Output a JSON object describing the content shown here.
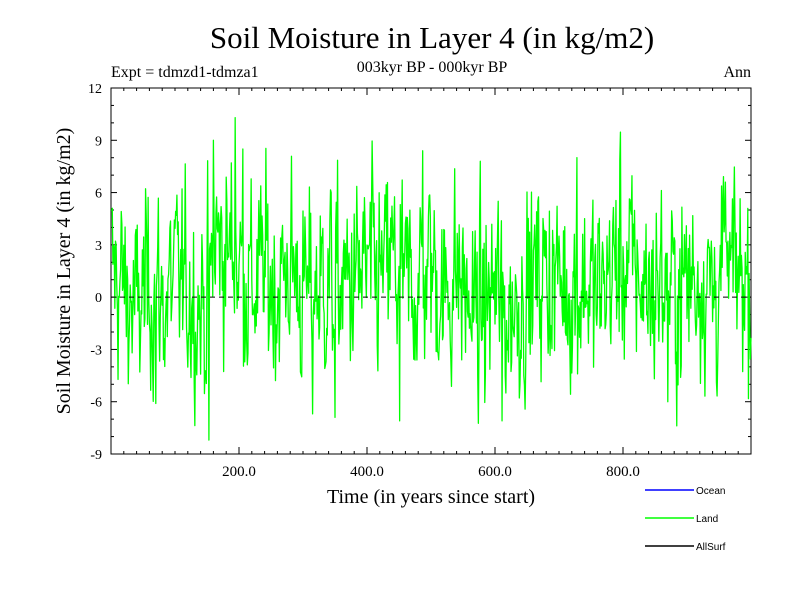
{
  "chart_data": {
    "type": "line",
    "title": "Soil Moisture in Layer 4 (in kg/m2)",
    "subtitle": "003kyr BP - 000kyr BP",
    "experiment": "Expt = tdmzd1-tdmza1",
    "season": "Ann",
    "xlabel": "Time (in years since start)",
    "ylabel": "Soil Moisture in Layer 4 (in kg/m2)",
    "xlim": [
      0,
      1000
    ],
    "ylim": [
      -9,
      12
    ],
    "x_ticks": [
      200,
      400,
      600,
      800
    ],
    "x_tick_labels": [
      "200.0",
      "400.0",
      "600.0",
      "800.0"
    ],
    "y_ticks": [
      -9,
      -6,
      -3,
      0,
      3,
      6,
      9,
      12
    ],
    "y_tick_labels": [
      "-9",
      "-6",
      "-3",
      "0",
      "3",
      "6",
      "9",
      "12"
    ],
    "zero_line": 0,
    "legend": [
      {
        "name": "Ocean",
        "color": "#0000ff"
      },
      {
        "name": "Land",
        "color": "#00ff00"
      },
      {
        "name": "AllSurf",
        "color": "#000000"
      }
    ],
    "series": [
      {
        "name": "Land",
        "color": "#00ff00",
        "n_points": 1000,
        "x_start": 1,
        "x_step": 1,
        "anchors_x": [
          0,
          20,
          40,
          60,
          80,
          100,
          120,
          140,
          155,
          160,
          180,
          195,
          200,
          220,
          240,
          260,
          280,
          300,
          320,
          340,
          360,
          380,
          400,
          420,
          440,
          460,
          480,
          500,
          520,
          540,
          560,
          580,
          600,
          620,
          640,
          660,
          680,
          700,
          720,
          740,
          760,
          780,
          800,
          820,
          840,
          860,
          880,
          900,
          920,
          940,
          960,
          980,
          1000
        ],
        "anchors_y": [
          1.5,
          0.5,
          -1.0,
          1.0,
          -0.5,
          1.0,
          0.5,
          -0.5,
          0.0,
          3.5,
          2.5,
          3.0,
          2.0,
          0.5,
          1.5,
          0.5,
          2.0,
          0.0,
          0.5,
          1.0,
          0.5,
          1.0,
          1.5,
          1.0,
          2.0,
          0.5,
          1.0,
          2.0,
          0.0,
          1.5,
          -0.5,
          -1.0,
          0.5,
          -1.0,
          0.0,
          1.0,
          1.5,
          1.0,
          0.5,
          1.0,
          0.0,
          1.5,
          2.0,
          1.5,
          0.5,
          1.0,
          0.0,
          1.0,
          1.5,
          0.5,
          1.0,
          1.5,
          1.0
        ],
        "noise_sd": 2.8,
        "extremes": [
          {
            "x": 153,
            "y": -8.2
          },
          {
            "x": 160,
            "y": 9.0
          },
          {
            "x": 194,
            "y": 10.3
          },
          {
            "x": 206,
            "y": 8.5
          },
          {
            "x": 70,
            "y": -6.1
          },
          {
            "x": 315,
            "y": -6.7
          },
          {
            "x": 350,
            "y": -6.9
          },
          {
            "x": 451,
            "y": -7.1
          },
          {
            "x": 487,
            "y": 8.4
          },
          {
            "x": 611,
            "y": -7.1
          },
          {
            "x": 728,
            "y": 8.0
          },
          {
            "x": 795,
            "y": 7.9
          },
          {
            "x": 960,
            "y": 6.6
          },
          {
            "x": 870,
            "y": -6.0
          }
        ]
      }
    ]
  }
}
